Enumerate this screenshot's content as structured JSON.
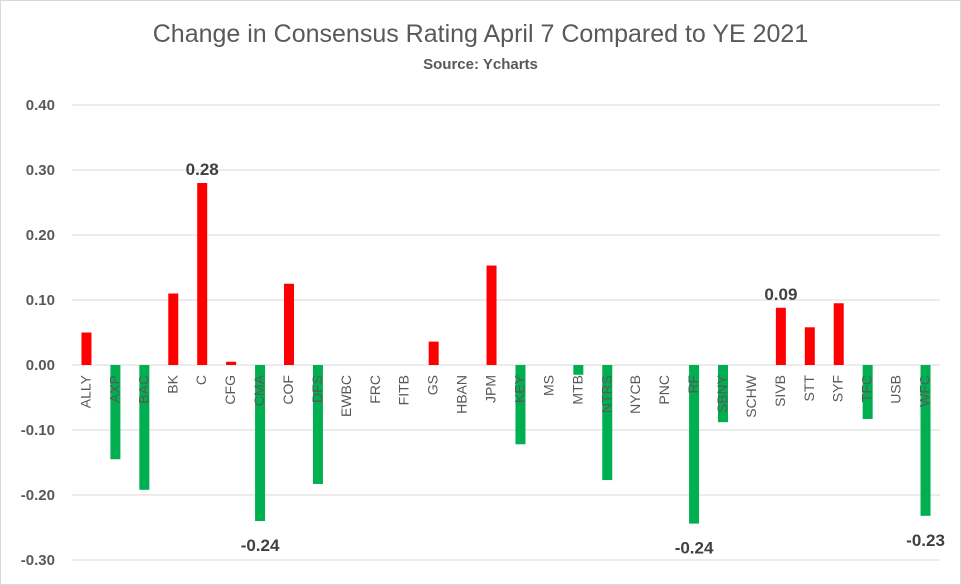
{
  "chart_data": {
    "type": "bar",
    "title": "Change in Consensus Rating April 7 Compared to YE 2021",
    "subtitle": "Source: Ycharts",
    "xlabel": "",
    "ylabel": "",
    "ylim": [
      -0.3,
      0.4
    ],
    "yticks": [
      "0.40",
      "0.30",
      "0.20",
      "0.10",
      "0.00",
      "-0.10",
      "-0.20",
      "-0.30"
    ],
    "ytick_values": [
      0.4,
      0.3,
      0.2,
      0.1,
      0.0,
      -0.1,
      -0.2,
      -0.3
    ],
    "grid": true,
    "colors": {
      "positive": "#ff0000",
      "negative": "#00b050",
      "grid": "#d9d9d9",
      "axis": "#d9d9d9"
    },
    "categories": [
      "ALLY",
      "AXP",
      "BAC",
      "BK",
      "C",
      "CFG",
      "CMA",
      "COF",
      "DFS",
      "EWBC",
      "FRC",
      "FITB",
      "GS",
      "HBAN",
      "JPM",
      "KEY",
      "MS",
      "MTB",
      "NTRS",
      "NYCB",
      "PNC",
      "RF",
      "SBNY",
      "SCHW",
      "SIVB",
      "STT",
      "SYF",
      "TFC",
      "USB",
      "WFC"
    ],
    "values": [
      0.05,
      -0.145,
      -0.192,
      0.11,
      0.28,
      0.005,
      -0.24,
      0.125,
      -0.183,
      0.0,
      0.0,
      0.0,
      0.036,
      0.0,
      0.153,
      -0.122,
      0.0,
      -0.015,
      -0.177,
      0.0,
      0.0,
      -0.244,
      -0.088,
      -0.0,
      0.088,
      0.058,
      0.095,
      -0.083,
      0.0,
      -0.232
    ],
    "data_labels": [
      {
        "category": "C",
        "text": "0.28"
      },
      {
        "category": "CMA",
        "text": "-0.24"
      },
      {
        "category": "SIVB",
        "text": "0.09"
      },
      {
        "category": "RF",
        "text": "-0.24"
      },
      {
        "category": "WFC",
        "text": "-0.23"
      }
    ]
  }
}
